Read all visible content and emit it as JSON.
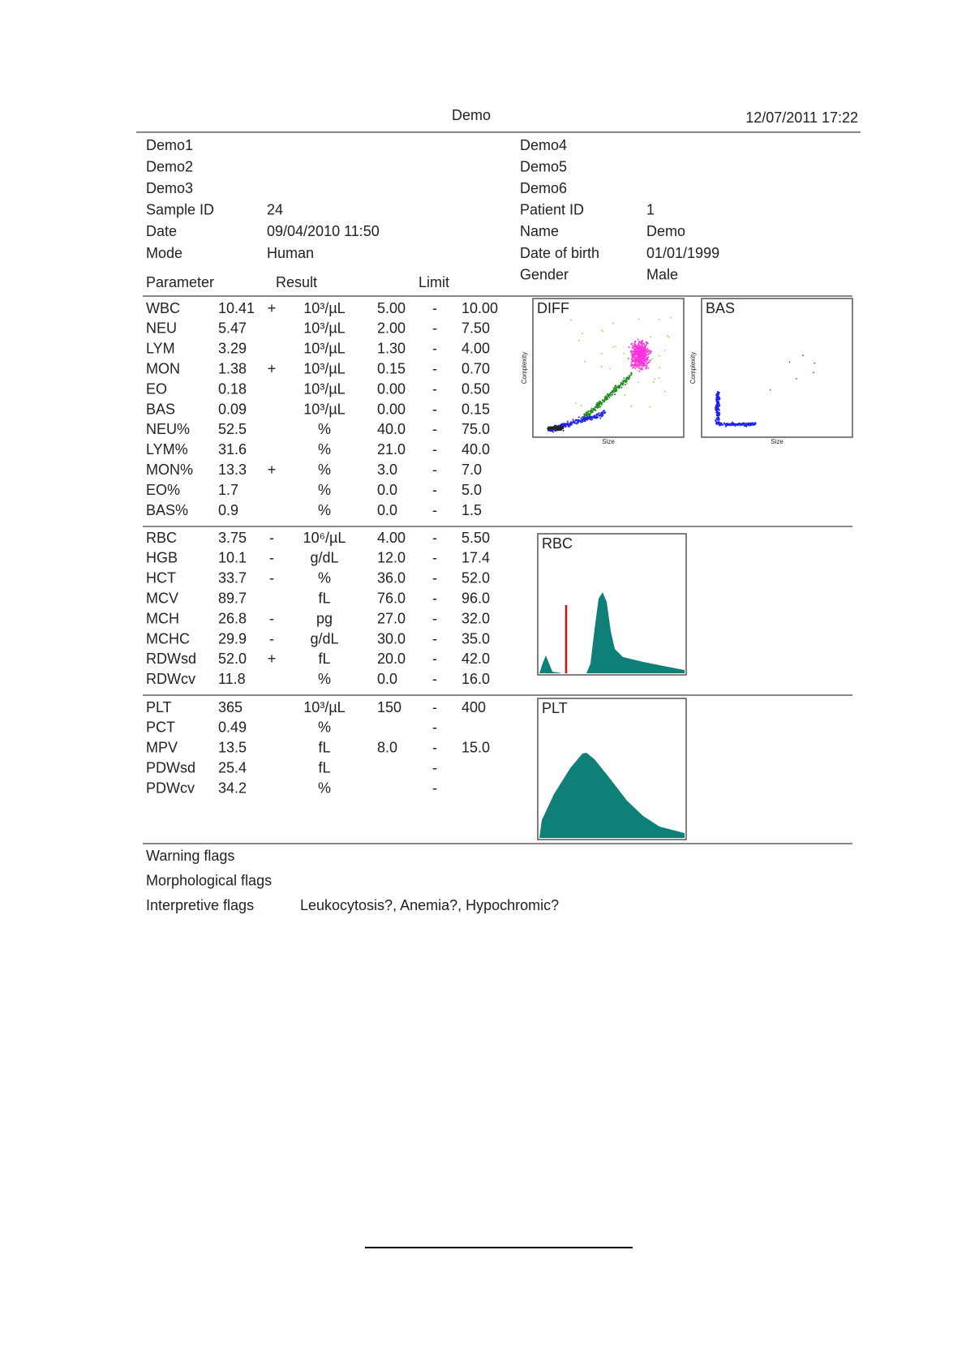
{
  "header": {
    "title": "Demo",
    "datetime": "12/07/2011 17:22"
  },
  "patient": {
    "left": [
      {
        "label": "Demo1"
      },
      {
        "label": "Demo2"
      },
      {
        "label": "Demo3"
      },
      {
        "label": "Sample ID",
        "value": "24"
      },
      {
        "label": "Date",
        "value": "09/04/2010 11:50"
      },
      {
        "label": "Mode",
        "value": "Human"
      }
    ],
    "right": [
      {
        "label": "Demo4"
      },
      {
        "label": "Demo5"
      },
      {
        "label": "Demo6"
      },
      {
        "label": "Patient ID",
        "value": "1"
      },
      {
        "label": "Name",
        "value": "Demo"
      },
      {
        "label": "Date of birth",
        "value": "01/01/1999"
      },
      {
        "label": "Gender",
        "value": "Male"
      }
    ]
  },
  "columns": {
    "parameter": "Parameter",
    "result": "Result",
    "limit": "Limit"
  },
  "groups": [
    {
      "plots": [
        "DIFF",
        "BAS"
      ],
      "rows": [
        {
          "name": "WBC",
          "result": "10.41",
          "flag": "+",
          "unit": "10³/µL",
          "low": "5.00",
          "sep": "-",
          "high": "10.00"
        },
        {
          "name": "NEU",
          "result": "5.47",
          "unit": "10³/µL",
          "low": "2.00",
          "sep": "-",
          "high": "7.50"
        },
        {
          "name": "LYM",
          "result": "3.29",
          "unit": "10³/µL",
          "low": "1.30",
          "sep": "-",
          "high": "4.00"
        },
        {
          "name": "MON",
          "result": "1.38",
          "flag": "+",
          "unit": "10³/µL",
          "low": "0.15",
          "sep": "-",
          "high": "0.70"
        },
        {
          "name": "EO",
          "result": "0.18",
          "unit": "10³/µL",
          "low": "0.00",
          "sep": "-",
          "high": "0.50"
        },
        {
          "name": "BAS",
          "result": "0.09",
          "unit": "10³/µL",
          "low": "0.00",
          "sep": "-",
          "high": "0.15"
        },
        {
          "name": "NEU%",
          "result": "52.5",
          "unit": "%",
          "low": "40.0",
          "sep": "-",
          "high": "75.0"
        },
        {
          "name": "LYM%",
          "result": "31.6",
          "unit": "%",
          "low": "21.0",
          "sep": "-",
          "high": "40.0"
        },
        {
          "name": "MON%",
          "result": "13.3",
          "flag": "+",
          "unit": "%",
          "low": "3.0",
          "sep": "-",
          "high": "7.0"
        },
        {
          "name": "EO%",
          "result": "1.7",
          "unit": "%",
          "low": "0.0",
          "sep": "-",
          "high": "5.0"
        },
        {
          "name": "BAS%",
          "result": "0.9",
          "unit": "%",
          "low": "0.0",
          "sep": "-",
          "high": "1.5"
        }
      ]
    },
    {
      "plots": [
        "RBC"
      ],
      "rows": [
        {
          "name": "RBC",
          "result": "3.75",
          "flag": "-",
          "unit": "10⁶/µL",
          "low": "4.00",
          "sep": "-",
          "high": "5.50"
        },
        {
          "name": "HGB",
          "result": "10.1",
          "flag": "-",
          "unit": "g/dL",
          "low": "12.0",
          "sep": "-",
          "high": "17.4"
        },
        {
          "name": "HCT",
          "result": "33.7",
          "flag": "-",
          "unit": "%",
          "low": "36.0",
          "sep": "-",
          "high": "52.0"
        },
        {
          "name": "MCV",
          "result": "89.7",
          "unit": "fL",
          "low": "76.0",
          "sep": "-",
          "high": "96.0"
        },
        {
          "name": "MCH",
          "result": "26.8",
          "flag": "-",
          "unit": "pg",
          "low": "27.0",
          "sep": "-",
          "high": "32.0"
        },
        {
          "name": "MCHC",
          "result": "29.9",
          "flag": "-",
          "unit": "g/dL",
          "low": "30.0",
          "sep": "-",
          "high": "35.0"
        },
        {
          "name": "RDWsd",
          "result": "52.0",
          "flag": "+",
          "unit": "fL",
          "low": "20.0",
          "sep": "-",
          "high": "42.0"
        },
        {
          "name": "RDWcv",
          "result": "11.8",
          "unit": "%",
          "low": "0.0",
          "sep": "-",
          "high": "16.0"
        }
      ]
    },
    {
      "plots": [
        "PLT"
      ],
      "rows": [
        {
          "name": "PLT",
          "result": "365",
          "unit": "10³/µL",
          "low": "150",
          "sep": "-",
          "high": "400"
        },
        {
          "name": "PCT",
          "result": "0.49",
          "unit": "%",
          "sep": "-"
        },
        {
          "name": "MPV",
          "result": "13.5",
          "unit": "fL",
          "low": "8.0",
          "sep": "-",
          "high": "15.0"
        },
        {
          "name": "PDWsd",
          "result": "25.4",
          "unit": "fL",
          "sep": "-"
        },
        {
          "name": "PDWcv",
          "result": "34.2",
          "unit": "%",
          "sep": "-"
        }
      ]
    }
  ],
  "plot_axes": {
    "x": "Size",
    "y": "Complexity"
  },
  "flags": [
    {
      "label": "Warning flags"
    },
    {
      "label": "Morphological flags"
    },
    {
      "label": "Interpretive flags",
      "value": "Leukocytosis?, Anemia?, Hypochromic?"
    }
  ]
}
